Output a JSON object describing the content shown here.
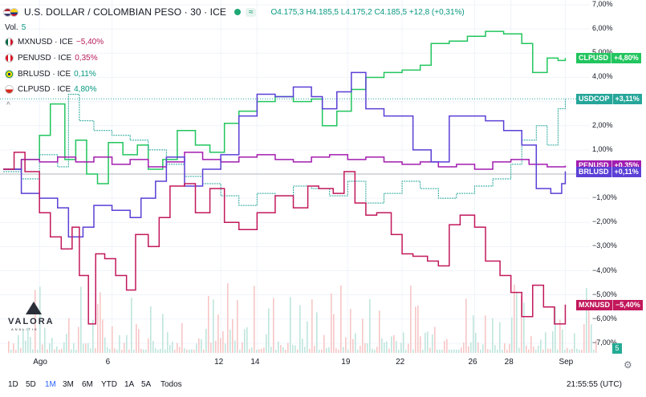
{
  "header": {
    "title": "U.S. DOLLAR / COLOMBIAN PESO · 30 · ICE",
    "badge": "≈",
    "ohlc": "O4.175,3  H4.185,5  L4.175,2  C4.185,5  +12,8 (+0,31%)"
  },
  "volume": {
    "label": "Vol.",
    "value": "5"
  },
  "legend": [
    {
      "name": "MXNUSD · ICE",
      "value": "−5,40%",
      "color": "#b91c5c",
      "flag": "mx"
    },
    {
      "name": "PENUSD · ICE",
      "value": "0,35%",
      "color": "#b91c5c",
      "flag": "pe"
    },
    {
      "name": "BRLUSD · ICE",
      "value": "0,11%",
      "color": "#089981",
      "flag": "br"
    },
    {
      "name": "CLPUSD · ICE",
      "value": "4,80%",
      "color": "#089981",
      "flag": "cl"
    }
  ],
  "collapse_icon": "^",
  "logo": {
    "name": "VALORA",
    "sub": "ANALITIK"
  },
  "bottom": {
    "ranges": [
      "1D",
      "5D",
      "1M",
      "3M",
      "6M",
      "YTD",
      "1A",
      "5A",
      "Todos"
    ],
    "active": "1M",
    "clock": "21:55:55 (UTC)",
    "vol_badge": "5",
    "settings_icon": "gear-icon"
  },
  "colors": {
    "usdcop": "#26a69a",
    "clpusd": "#22c55e",
    "penusd": "#a21caf",
    "brlusd": "#5b3fd6",
    "mxnusd": "#c2185b"
  },
  "chart_data": {
    "type": "line",
    "title": "U.S. DOLLAR / COLOMBIAN PESO · 30 · ICE",
    "ylim": [
      -7.4,
      7.2
    ],
    "y_ticks": [
      7,
      6,
      5,
      4,
      3,
      2,
      1,
      0,
      -1,
      -2,
      -3,
      -4,
      -5,
      -6,
      -7
    ],
    "y_tick_labels": [
      "7,00%",
      "6,00%",
      "5,00%",
      "4,00%",
      "3,00%",
      "2,00%",
      "1,00%",
      "",
      "−1,00%",
      "−2,00%",
      "−3,00%",
      "−4,00%",
      "−5,00%",
      "−6,00%",
      "−7,00%"
    ],
    "x_ticks": [
      {
        "label": "Ago",
        "t": 2
      },
      {
        "label": "6",
        "t": 6
      },
      {
        "label": "12",
        "t": 12
      },
      {
        "label": "14",
        "t": 14
      },
      {
        "label": "19",
        "t": 19
      },
      {
        "label": "22",
        "t": 22
      },
      {
        "label": "26",
        "t": 26
      },
      {
        "label": "28",
        "t": 28
      },
      {
        "label": "Sep",
        "t": 31
      }
    ],
    "xlim": [
      0,
      31.6
    ],
    "series": [
      {
        "name": "CLPUSD",
        "tag": "CLPUSD",
        "tag_value": "+4,80%",
        "last": 4.8,
        "points": [
          [
            0,
            0.2
          ],
          [
            1,
            0.6
          ],
          [
            2,
            1.6
          ],
          [
            2.6,
            2.9
          ],
          [
            3.4,
            0.6
          ],
          [
            4,
            1.4
          ],
          [
            4.6,
            0
          ],
          [
            5.2,
            -0.4
          ],
          [
            5.8,
            1.3
          ],
          [
            6.6,
            0.8
          ],
          [
            7.4,
            1.2
          ],
          [
            8,
            0.2
          ],
          [
            8.8,
            0.6
          ],
          [
            9.6,
            1.8
          ],
          [
            10.6,
            1.2
          ],
          [
            11.4,
            0.9
          ],
          [
            12.2,
            2.1
          ],
          [
            13,
            2.6
          ],
          [
            14,
            3.0
          ],
          [
            15,
            3.2
          ],
          [
            16,
            3.0
          ],
          [
            17,
            3.1
          ],
          [
            17.6,
            2.0
          ],
          [
            18.4,
            2.6
          ],
          [
            19.2,
            3.5
          ],
          [
            20,
            4.0
          ],
          [
            21,
            4.2
          ],
          [
            22,
            4.3
          ],
          [
            23,
            4.5
          ],
          [
            23.6,
            5.4
          ],
          [
            24.6,
            5.5
          ],
          [
            25.6,
            5.7
          ],
          [
            26.6,
            5.9
          ],
          [
            27.6,
            5.8
          ],
          [
            28.6,
            5.4
          ],
          [
            29.2,
            4.2
          ],
          [
            30,
            4.8
          ],
          [
            30.6,
            4.7
          ],
          [
            31,
            4.8
          ]
        ]
      },
      {
        "name": "USDCOP",
        "tag": "USDCOP",
        "tag_value": "+3,11%",
        "last": 3.11,
        "points": [
          [
            0,
            0.1
          ],
          [
            1,
            -0.2
          ],
          [
            2,
            0.8
          ],
          [
            3,
            0.3
          ],
          [
            3.6,
            3.3
          ],
          [
            4.2,
            2.2
          ],
          [
            5,
            1.8
          ],
          [
            6,
            1.6
          ],
          [
            7,
            1.4
          ],
          [
            8,
            1.0
          ],
          [
            9,
            0.4
          ],
          [
            10,
            -0.1
          ],
          [
            11,
            -0.4
          ],
          [
            12,
            -0.9
          ],
          [
            13,
            -1.3
          ],
          [
            14,
            -0.8
          ],
          [
            15,
            -0.9
          ],
          [
            16,
            -0.5
          ],
          [
            17,
            -0.6
          ],
          [
            18,
            -0.9
          ],
          [
            19,
            -0.3
          ],
          [
            20,
            -1.2
          ],
          [
            21,
            -0.8
          ],
          [
            22,
            -0.3
          ],
          [
            23,
            -0.6
          ],
          [
            24,
            -1.0
          ],
          [
            25,
            -0.8
          ],
          [
            26,
            -0.5
          ],
          [
            27,
            -0.2
          ],
          [
            28,
            0.4
          ],
          [
            28.6,
            1.4
          ],
          [
            29.4,
            2.0
          ],
          [
            30,
            1.2
          ],
          [
            30.6,
            2.7
          ],
          [
            31,
            3.1
          ]
        ]
      },
      {
        "name": "PENUSD",
        "tag": "PENUSD",
        "tag_value": "+0,35%",
        "last": 0.35,
        "points": [
          [
            0,
            0.2
          ],
          [
            1,
            0.6
          ],
          [
            2,
            0.5
          ],
          [
            3,
            0.7
          ],
          [
            4,
            0.5
          ],
          [
            5,
            0.7
          ],
          [
            6,
            0.4
          ],
          [
            7,
            0.6
          ],
          [
            8,
            0.3
          ],
          [
            9,
            0.5
          ],
          [
            10,
            0.9
          ],
          [
            11,
            0.6
          ],
          [
            12,
            0.5
          ],
          [
            13,
            0.7
          ],
          [
            14,
            0.8
          ],
          [
            15,
            0.6
          ],
          [
            16,
            0.5
          ],
          [
            17,
            0.7
          ],
          [
            18,
            0.8
          ],
          [
            19,
            0.6
          ],
          [
            20,
            0.7
          ],
          [
            21,
            0.5
          ],
          [
            22,
            0.4
          ],
          [
            23,
            0.5
          ],
          [
            24,
            0.3
          ],
          [
            25,
            0.4
          ],
          [
            26,
            0.2
          ],
          [
            27,
            0.5
          ],
          [
            28,
            0.6
          ],
          [
            29,
            0.4
          ],
          [
            30,
            0.3
          ],
          [
            31,
            0.35
          ]
        ]
      },
      {
        "name": "BRLUSD",
        "tag": "BRLUSD",
        "tag_value": "+0,11%",
        "last": 0.11,
        "points": [
          [
            0,
            0.2
          ],
          [
            1,
            -0.8
          ],
          [
            2,
            -1.0
          ],
          [
            3,
            -1.4
          ],
          [
            3.6,
            -2.6
          ],
          [
            4.4,
            -2.2
          ],
          [
            5,
            -1.3
          ],
          [
            6,
            -1.5
          ],
          [
            7,
            -1.8
          ],
          [
            7.6,
            -1.0
          ],
          [
            8.4,
            -0.3
          ],
          [
            9,
            0.7
          ],
          [
            10,
            -0.5
          ],
          [
            11,
            0.2
          ],
          [
            12,
            0.8
          ],
          [
            13,
            2.4
          ],
          [
            14,
            3.3
          ],
          [
            15,
            3.2
          ],
          [
            16,
            3.6
          ],
          [
            17,
            3.2
          ],
          [
            17.6,
            2.7
          ],
          [
            18.4,
            3.4
          ],
          [
            19.2,
            4.2
          ],
          [
            20,
            2.7
          ],
          [
            21,
            2.4
          ],
          [
            22,
            2.4
          ],
          [
            22.6,
            1.0
          ],
          [
            23.6,
            0.5
          ],
          [
            24.6,
            2.4
          ],
          [
            25.6,
            2.4
          ],
          [
            26.6,
            2.2
          ],
          [
            27.6,
            1.8
          ],
          [
            28.6,
            1.2
          ],
          [
            29.4,
            -0.6
          ],
          [
            30.2,
            -0.8
          ],
          [
            30.8,
            -0.4
          ],
          [
            31,
            0.11
          ]
        ]
      },
      {
        "name": "MXNUSD",
        "tag": "MXNUSD",
        "tag_value": "−5,40%",
        "last": -5.4,
        "points": [
          [
            0,
            0.2
          ],
          [
            0.6,
            0.9
          ],
          [
            1.2,
            0.1
          ],
          [
            2,
            -1.6
          ],
          [
            2.6,
            -2.6
          ],
          [
            3.2,
            -3.1
          ],
          [
            3.8,
            -2.2
          ],
          [
            4.2,
            -4.2
          ],
          [
            4.7,
            -6.2
          ],
          [
            5.1,
            -3.3
          ],
          [
            5.6,
            -3.5
          ],
          [
            6.2,
            -4.2
          ],
          [
            6.8,
            -4.8
          ],
          [
            7.3,
            -2.5
          ],
          [
            8,
            -3.0
          ],
          [
            8.6,
            -1.8
          ],
          [
            9.2,
            -0.5
          ],
          [
            10,
            -0.4
          ],
          [
            10.6,
            -1.6
          ],
          [
            11.4,
            -0.6
          ],
          [
            12.2,
            -2.0
          ],
          [
            13,
            -2.3
          ],
          [
            14,
            -1.6
          ],
          [
            15,
            -0.9
          ],
          [
            16,
            -1.4
          ],
          [
            16.8,
            -0.5
          ],
          [
            17.4,
            -0.6
          ],
          [
            18.2,
            -0.8
          ],
          [
            18.8,
            0.1
          ],
          [
            19.4,
            -1.2
          ],
          [
            20,
            -1.7
          ],
          [
            20.6,
            -1.6
          ],
          [
            21.4,
            -2.5
          ],
          [
            22,
            -3.3
          ],
          [
            22.6,
            -3.4
          ],
          [
            23.4,
            -3.6
          ],
          [
            24,
            -3.8
          ],
          [
            24.6,
            -2.1
          ],
          [
            25.2,
            -1.7
          ],
          [
            26,
            -2.2
          ],
          [
            26.6,
            -3.6
          ],
          [
            27.4,
            -4.2
          ],
          [
            28,
            -4.9
          ],
          [
            28.6,
            -5.9
          ],
          [
            29.2,
            -4.6
          ],
          [
            29.8,
            -5.5
          ],
          [
            30.4,
            -6.2
          ],
          [
            31,
            -5.4
          ]
        ]
      }
    ]
  }
}
